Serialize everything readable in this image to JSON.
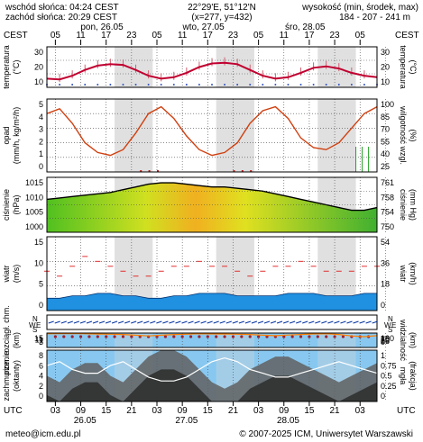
{
  "header": {
    "sunrise": "wschód słońca: 04:24 CEST",
    "sunset": "zachód słońca: 20:29 CEST",
    "coords": "22°29'E, 51°12'N",
    "grid": "(x=277, y=432)",
    "elev_label": "wysokość (min, środek, max)",
    "elev_values": "184 - 207 - 241 m"
  },
  "top_axis": {
    "tz_left": "CEST",
    "tz_right": "CEST",
    "hours": [
      "05",
      "11",
      "17",
      "23",
      "05",
      "11",
      "17",
      "23",
      "05",
      "11",
      "17",
      "23",
      "05"
    ],
    "days": [
      {
        "label": "pon, 26.05",
        "at": 13
      },
      {
        "label": "wto, 27.05",
        "at": 37
      },
      {
        "label": "śro, 28.05",
        "at": 61
      }
    ]
  },
  "bottom_axis": {
    "tz": "UTC",
    "hours": [
      "03",
      "09",
      "15",
      "21",
      "03",
      "09",
      "15",
      "21",
      "03",
      "09",
      "15",
      "21",
      "03"
    ],
    "days": [
      {
        "label": "26.05",
        "at": 9
      },
      {
        "label": "27.05",
        "at": 33
      },
      {
        "label": "28.05",
        "at": 57
      }
    ]
  },
  "footer": {
    "email": "meteo@icm.edu.pl",
    "copyright": "© 2007-2025 ICM, Uniwersytet Warszawski"
  },
  "colors": {
    "temperature": "#c00030",
    "humidity": "#d04010",
    "wind_gust": "#e03030",
    "wind_area": "#2090e0",
    "visibility": "#ff8000",
    "sky": "#88c8f0",
    "night_shade": "#d8d8d8"
  },
  "chart_data": [
    {
      "type": "line",
      "id": "temperature",
      "ylabel_left": "temperatura",
      "ylabel_left_unit": "(°C)",
      "ylabel_right": "temperatura",
      "ylabel_right_unit": "(°C)",
      "yticks_left": [
        30,
        20,
        10
      ],
      "yticks_right": [
        30,
        20,
        10
      ],
      "ylim": [
        5,
        33
      ],
      "x_hours_from_start": [
        0,
        3,
        6,
        9,
        12,
        15,
        18,
        21,
        24,
        27,
        30,
        33,
        36,
        39,
        42,
        45,
        48,
        51,
        54,
        57,
        60,
        63,
        66,
        69,
        72,
        75,
        78
      ],
      "series": [
        {
          "values": [
            11,
            10.5,
            13,
            17,
            20,
            21,
            20.5,
            17,
            13,
            11,
            12,
            15,
            19,
            21.5,
            22,
            21,
            17,
            13,
            11,
            12,
            15,
            18.5,
            19.5,
            18,
            15,
            13,
            12
          ]
        }
      ]
    },
    {
      "type": "line",
      "id": "precipitation_humidity",
      "ylabel_left": "opad",
      "ylabel_left_unit": "(mm/h, kg/m²/h)",
      "ylabel_right": "wilgotność wzgl.",
      "ylabel_right_unit": "(%)",
      "yticks_left": [
        5,
        4,
        3,
        2,
        1,
        0
      ],
      "yticks_right": [
        100,
        85,
        70,
        55,
        40,
        25
      ],
      "ylim": [
        0,
        5
      ],
      "ylim_right": [
        25,
        100
      ],
      "series": [
        {
          "values": [
            85,
            90,
            75,
            55,
            45,
            42,
            48,
            65,
            85,
            92,
            80,
            62,
            48,
            42,
            45,
            55,
            75,
            88,
            92,
            80,
            60,
            50,
            48,
            55,
            70,
            85,
            92
          ]
        }
      ]
    },
    {
      "type": "area",
      "id": "pressure",
      "ylabel_left": "ciśnienie",
      "ylabel_left_unit": "(hPa)",
      "ylabel_right": "ciśnienie",
      "ylabel_right_unit": "(mm Hg)",
      "yticks_left": [
        1015,
        1010,
        1005,
        1000
      ],
      "yticks_right": [
        761,
        758,
        754,
        750
      ],
      "ylim": [
        1000,
        1020
      ],
      "series": [
        {
          "values": [
            1012,
            1012.5,
            1013,
            1013.5,
            1014,
            1014.5,
            1015.5,
            1016.5,
            1017.5,
            1018,
            1018,
            1017.5,
            1017,
            1016.5,
            1016.5,
            1016,
            1015.5,
            1015,
            1014,
            1013,
            1012,
            1011,
            1010,
            1009,
            1008,
            1008,
            1009
          ]
        }
      ]
    },
    {
      "type": "area",
      "id": "wind",
      "ylabel_left": "wiatr",
      "ylabel_left_unit": "(m/s)",
      "ylabel_right": "wiatr",
      "ylabel_right_unit": "(km/h)",
      "yticks_left": [
        15,
        10,
        5,
        0
      ],
      "yticks_right": [
        54,
        36,
        18,
        0
      ],
      "ylim": [
        0,
        15
      ],
      "series": [
        {
          "values": [
            2.5,
            2.5,
            3,
            3,
            3.5,
            3.5,
            3,
            3,
            2.5,
            2.5,
            3,
            3,
            3.5,
            3.5,
            3.5,
            3,
            3,
            3,
            3,
            3.5,
            3.5,
            3.5,
            3,
            3,
            3,
            3.5,
            3.5
          ]
        },
        {
          "values": [
            8,
            7,
            9,
            11,
            10,
            9,
            8,
            7,
            7,
            8,
            9,
            9,
            10,
            9,
            9,
            8,
            7,
            8,
            9,
            9,
            10,
            9,
            8,
            8,
            8,
            9,
            9
          ]
        }
      ]
    },
    {
      "type": "scatter",
      "id": "cloud_base_visibility",
      "ylabel_left": "pion. rozciągł. chm.",
      "ylabel_left_unit": "(km)",
      "ylabel_right": "widzialność",
      "ylabel_right_unit": "(km)",
      "yticks_left": [
        15.0,
        11.0,
        7.0,
        3.0
      ],
      "yticks_right": [
        100,
        75,
        50,
        25,
        0
      ],
      "ylim": [
        0,
        15
      ],
      "series": [
        {
          "values": [
            95,
            96,
            97,
            95,
            93,
            92,
            90,
            85,
            80,
            85,
            90,
            92,
            95,
            94,
            93,
            92,
            90,
            85,
            82,
            86,
            90,
            94,
            95,
            90,
            80,
            75,
            82
          ]
        }
      ]
    },
    {
      "type": "area",
      "id": "cloud_cover_fog",
      "ylabel_left": "zachmurzenie",
      "ylabel_left_unit": "(oktanty)",
      "ylabel_right": "mgła",
      "ylabel_right_unit": "(frakcja)",
      "yticks_left": [
        8,
        6,
        4,
        2,
        0
      ],
      "yticks_right": [
        1,
        0.75,
        0.5,
        0.25,
        0
      ],
      "ylim": [
        0,
        8
      ],
      "series": [
        {
          "values": [
            4,
            3,
            5,
            6,
            6,
            4,
            3,
            5,
            7,
            8,
            8,
            7,
            5,
            3,
            2,
            3,
            5,
            6,
            7,
            7,
            6,
            5,
            4,
            3,
            4,
            5,
            6
          ]
        }
      ]
    }
  ],
  "wind_row_labels": [
    "W",
    "E",
    "N",
    "S"
  ]
}
